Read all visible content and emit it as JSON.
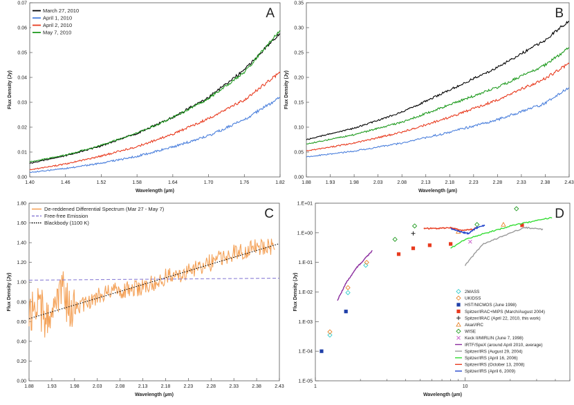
{
  "chart_data": [
    {
      "id": "A",
      "panel_letter": "A",
      "type": "line",
      "xlabel": "Wavelength (µm)",
      "ylabel": "Flux Density (Jy)",
      "xlim": [
        1.4,
        1.82
      ],
      "ylim": [
        0.0,
        0.07
      ],
      "xticks": [
        1.4,
        1.46,
        1.52,
        1.58,
        1.64,
        1.7,
        1.76,
        1.82
      ],
      "yticks": [
        0.0,
        0.01,
        0.02,
        0.03,
        0.04,
        0.05,
        0.06,
        0.07
      ],
      "legend_position": "top-left",
      "series": [
        {
          "name": "March 27, 2010",
          "color": "#000000",
          "x": [
            1.4,
            1.46,
            1.52,
            1.58,
            1.64,
            1.7,
            1.76,
            1.82
          ],
          "y": [
            0.0055,
            0.0085,
            0.0125,
            0.0175,
            0.024,
            0.032,
            0.043,
            0.058
          ]
        },
        {
          "name": "April 1, 2010",
          "color": "#4a7fdc",
          "x": [
            1.4,
            1.46,
            1.52,
            1.58,
            1.64,
            1.7,
            1.76,
            1.82
          ],
          "y": [
            0.0018,
            0.0034,
            0.0055,
            0.0083,
            0.012,
            0.0165,
            0.023,
            0.032
          ]
        },
        {
          "name": "April 2, 2010",
          "color": "#e83a1e",
          "x": [
            1.4,
            1.46,
            1.52,
            1.58,
            1.64,
            1.7,
            1.76,
            1.82
          ],
          "y": [
            0.0028,
            0.0052,
            0.0084,
            0.0122,
            0.0172,
            0.0235,
            0.031,
            0.042
          ]
        },
        {
          "name": "May 7, 2010",
          "color": "#1e9a1e",
          "x": [
            1.4,
            1.46,
            1.52,
            1.58,
            1.64,
            1.7,
            1.76,
            1.82
          ],
          "y": [
            0.006,
            0.0088,
            0.0127,
            0.0176,
            0.0238,
            0.0315,
            0.042,
            0.059
          ]
        }
      ]
    },
    {
      "id": "B",
      "panel_letter": "B",
      "type": "line",
      "xlabel": "Wavelength (µm)",
      "ylabel": "Flux Density (Jy)",
      "xlim": [
        1.88,
        2.43
      ],
      "ylim": [
        0.0,
        0.35
      ],
      "xticks": [
        1.88,
        1.93,
        1.98,
        2.03,
        2.08,
        2.13,
        2.18,
        2.23,
        2.28,
        2.33,
        2.38,
        2.43
      ],
      "yticks": [
        0.0,
        0.05,
        0.1,
        0.15,
        0.2,
        0.25,
        0.3,
        0.35
      ],
      "series": [
        {
          "name": "March 27, 2010",
          "color": "#000000",
          "x": [
            1.88,
            1.98,
            2.08,
            2.18,
            2.28,
            2.38,
            2.43
          ],
          "y": [
            0.075,
            0.098,
            0.13,
            0.175,
            0.22,
            0.275,
            0.315
          ]
        },
        {
          "name": "May 7, 2010",
          "color": "#1e9a1e",
          "x": [
            1.88,
            1.98,
            2.08,
            2.18,
            2.28,
            2.38,
            2.43
          ],
          "y": [
            0.066,
            0.085,
            0.11,
            0.145,
            0.18,
            0.225,
            0.26
          ]
        },
        {
          "name": "April 2, 2010",
          "color": "#e83a1e",
          "x": [
            1.88,
            1.98,
            2.08,
            2.18,
            2.28,
            2.38,
            2.43
          ],
          "y": [
            0.052,
            0.068,
            0.09,
            0.12,
            0.155,
            0.198,
            0.228
          ]
        },
        {
          "name": "April 1, 2010",
          "color": "#4a7fdc",
          "x": [
            1.88,
            1.98,
            2.08,
            2.18,
            2.28,
            2.38,
            2.43
          ],
          "y": [
            0.04,
            0.052,
            0.068,
            0.09,
            0.115,
            0.148,
            0.18
          ]
        }
      ]
    },
    {
      "id": "C",
      "panel_letter": "C",
      "type": "line",
      "xlabel": "Wavelength (µm)",
      "ylabel": "Flux Density (Jy)",
      "xlim": [
        1.88,
        2.43
      ],
      "ylim": [
        0.0,
        1.8
      ],
      "xticks": [
        1.88,
        1.93,
        1.98,
        2.03,
        2.08,
        2.13,
        2.18,
        2.23,
        2.28,
        2.33,
        2.38,
        2.43
      ],
      "yticks": [
        "0.00",
        "0.20",
        "0.40",
        "0.60",
        "0.80",
        "1.00",
        "1.20",
        "1.40",
        "1.60",
        "1.80"
      ],
      "legend_position": "top-left",
      "series": [
        {
          "name": "De-reddened Differential Spectrum (Mar 27 - May 7)",
          "color": "#f4a259",
          "x": [
            1.88,
            1.9,
            1.92,
            1.95,
            1.97,
            2.03,
            2.08,
            2.13,
            2.18,
            2.23,
            2.28,
            2.33,
            2.38,
            2.42
          ],
          "y": [
            0.7,
            0.8,
            0.55,
            0.95,
            0.72,
            0.85,
            0.92,
            0.95,
            1.05,
            1.1,
            1.2,
            1.3,
            1.35,
            1.35
          ]
        },
        {
          "name": "Free-free Emission",
          "color": "#8b7fd6",
          "dash": "dash",
          "x": [
            1.88,
            2.43
          ],
          "y": [
            1.02,
            1.04
          ]
        },
        {
          "name": "Blackbody (1100 K)",
          "color": "#000000",
          "dash": "dot",
          "x": [
            1.88,
            2.43
          ],
          "y": [
            0.63,
            1.39
          ]
        }
      ]
    },
    {
      "id": "D",
      "panel_letter": "D",
      "type": "scatter",
      "xlabel": "Wavelength (µm)",
      "ylabel": "Flux Density (Jy)",
      "xscale": "log",
      "yscale": "log",
      "xlim": [
        1,
        50
      ],
      "ylim": [
        1e-05,
        10
      ],
      "xtick_labels": [
        "1",
        "10"
      ],
      "ytick_labels": [
        "1.E+01",
        "1.E+00",
        "1.E-01",
        "1.E-02",
        "1.E-03",
        "1.E-04",
        "1.E-05"
      ],
      "legend_position": "bottom-right",
      "series": [
        {
          "name": "2MASS",
          "marker": "diamond-open",
          "color": "#33cccc",
          "x": [
            1.25,
            1.65,
            2.17
          ],
          "y": [
            0.00035,
            0.0095,
            0.08
          ]
        },
        {
          "name": "UKIDSS",
          "marker": "diamond-open",
          "color": "#e8842a",
          "x": [
            1.25,
            1.65,
            2.2
          ],
          "y": [
            0.00045,
            0.014,
            0.1
          ]
        },
        {
          "name": "HST/NICMOS (June 1998)",
          "marker": "square",
          "color": "#1f3fa8",
          "x": [
            1.1,
            1.6
          ],
          "y": [
            0.0001,
            0.0022
          ]
        },
        {
          "name": "Spitzer/IRAC+MIPS (March/August 2004)",
          "marker": "square",
          "color": "#e83a1e",
          "x": [
            3.6,
            4.5,
            5.8,
            8.0,
            24.0
          ],
          "y": [
            0.19,
            0.3,
            0.38,
            0.42,
            1.8
          ]
        },
        {
          "name": "Spitzer/IRAC (April 22, 2010, this work)",
          "marker": "plus",
          "color": "#222222",
          "x": [
            4.5
          ],
          "y": [
            0.95
          ]
        },
        {
          "name": "Akari/IRC",
          "marker": "triangle-open",
          "color": "#e8842a",
          "x": [
            9.0,
            18.0
          ],
          "y": [
            1.1,
            1.9
          ]
        },
        {
          "name": "WISE",
          "marker": "diamond-open",
          "color": "#1e9a1e",
          "x": [
            3.4,
            4.6,
            12.0,
            22.0
          ],
          "y": [
            0.6,
            1.7,
            1.9,
            6.5
          ]
        },
        {
          "name": "Keck II/MIRLIN (June 7, 1998)",
          "marker": "x",
          "color": "#cc66cc",
          "x": [
            10.8
          ],
          "y": [
            0.5
          ]
        },
        {
          "name": "IRTF/SpeX (around April 2010, average)",
          "marker": "line",
          "color": "#8a2b9e",
          "x": [
            1.4,
            1.6,
            1.9,
            2.1,
            2.4
          ],
          "y": [
            0.005,
            0.02,
            0.07,
            0.12,
            0.25
          ]
        },
        {
          "name": "Spitzer/IRS (August 29, 2004)",
          "marker": "line",
          "color": "#999999",
          "x": [
            10.0,
            13.0,
            18.0,
            25.0,
            33.0
          ],
          "y": [
            0.08,
            0.4,
            0.8,
            1.5,
            1.3
          ]
        },
        {
          "name": "Spitzer/IRS (April 16, 2006)",
          "marker": "line",
          "color": "#33dd33",
          "x": [
            8.0,
            10.0,
            14.0,
            20.0,
            30.0,
            38.0
          ],
          "y": [
            0.3,
            0.6,
            1.0,
            1.7,
            2.6,
            3.3
          ]
        },
        {
          "name": "Spitzer/IRS (October 13, 2008)",
          "marker": "line",
          "color": "#e83a1e",
          "x": [
            5.3,
            6.5,
            8.0,
            9.5,
            11.0,
            12.0
          ],
          "y": [
            1.4,
            1.4,
            1.5,
            1.2,
            1.3,
            1.5
          ]
        },
        {
          "name": "Spitzer/IRS (April 6, 2009)",
          "marker": "line",
          "color": "#2244cc",
          "x": [
            8.0,
            9.5,
            10.5,
            12.0,
            13.5
          ],
          "y": [
            1.4,
            1.05,
            0.95,
            1.5,
            1.8
          ]
        }
      ]
    }
  ]
}
